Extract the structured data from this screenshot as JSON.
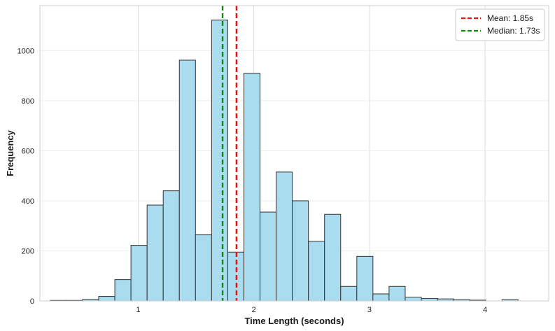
{
  "chart_data": {
    "type": "bar",
    "title": "",
    "xlabel": "Time Length (seconds)",
    "ylabel": "Frequency",
    "xlim": [
      0.15,
      4.55
    ],
    "ylim": [
      0,
      1180
    ],
    "x_ticks": [
      1,
      2,
      3,
      4
    ],
    "y_ticks": [
      0,
      200,
      400,
      600,
      800,
      1000
    ],
    "grid": true,
    "legend_position": "top-right",
    "bins": {
      "start": 0.24,
      "width": 0.1395,
      "counts": [
        2,
        2,
        6,
        18,
        85,
        222,
        383,
        440,
        962,
        264,
        1122,
        195,
        910,
        355,
        515,
        400,
        238,
        346,
        58,
        178,
        28,
        58,
        15,
        10,
        8,
        5,
        3,
        0,
        5,
        0
      ]
    },
    "series": [
      {
        "name": "Mean: 1.85s",
        "type": "vline",
        "x": 1.85,
        "color": "#ee1111",
        "style": "dashed"
      },
      {
        "name": "Median: 1.73s",
        "type": "vline",
        "x": 1.73,
        "color": "#118811",
        "style": "dashed"
      }
    ],
    "colors": {
      "bar_fill": "#a9dcef",
      "bar_edge": "#333333",
      "grid": "#dddddd",
      "frame": "#cccccc"
    }
  }
}
